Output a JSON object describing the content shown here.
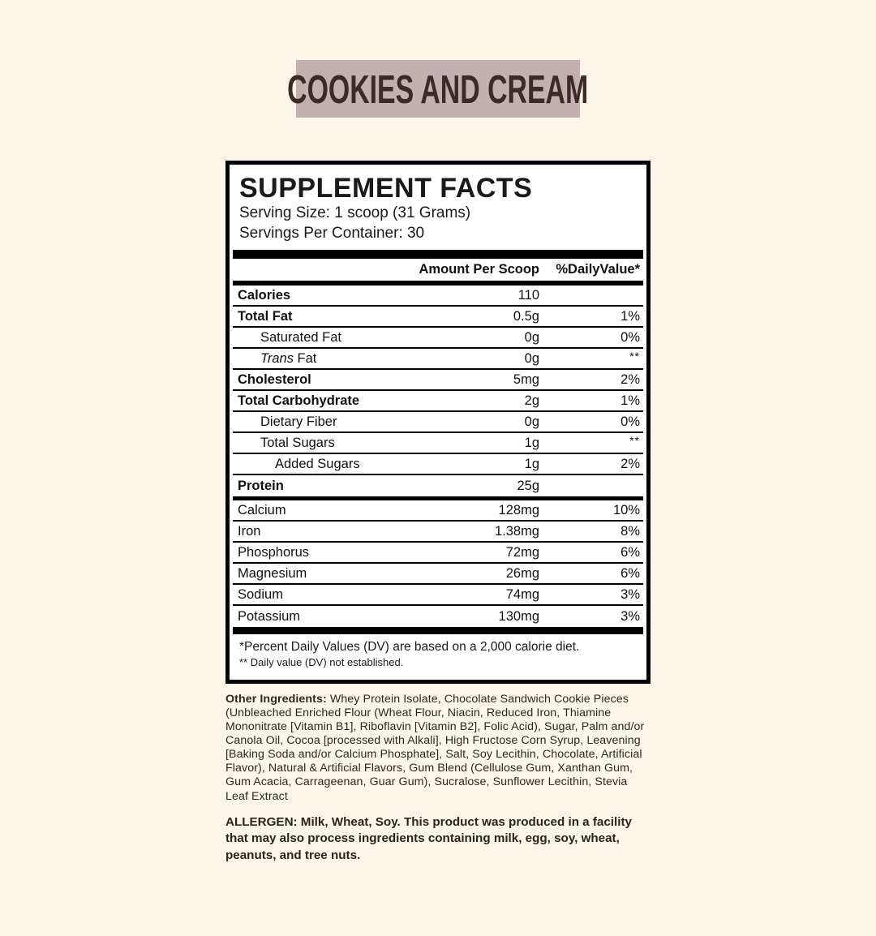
{
  "flavor_badge": {
    "label": "COOKIES AND CREAM",
    "bg_color": "#c3b1b1",
    "text_color": "#3b2a26"
  },
  "supplement_facts": {
    "title": "SUPPLEMENT FACTS",
    "serving_size": "Serving Size: 1 scoop (31 Grams)",
    "servings_per_container": "Servings Per Container: 30",
    "columns": {
      "amount_header": "Amount Per Scoop",
      "daily_value_header": "%DailyValue*"
    },
    "nutrient_rows": [
      {
        "name": "Calories",
        "bold": true,
        "indent": 0,
        "amount": "110",
        "dv": ""
      },
      {
        "name": "Total Fat",
        "bold": true,
        "indent": 0,
        "amount": "0.5g",
        "dv": "1%"
      },
      {
        "name": "Saturated Fat",
        "bold": false,
        "indent": 1,
        "amount": "0g",
        "dv": "0%"
      },
      {
        "name": "Trans Fat",
        "bold": false,
        "indent": 1,
        "amount": "0g",
        "dv": "**",
        "italic_word": "Trans"
      },
      {
        "name": "Cholesterol",
        "bold": true,
        "indent": 0,
        "amount": "5mg",
        "dv": "2%"
      },
      {
        "name": "Total Carbohydrate",
        "bold": true,
        "indent": 0,
        "amount": "2g",
        "dv": "1%"
      },
      {
        "name": "Dietary Fiber",
        "bold": false,
        "indent": 1,
        "amount": "0g",
        "dv": "0%"
      },
      {
        "name": "Total Sugars",
        "bold": false,
        "indent": 1,
        "amount": "1g",
        "dv": "**"
      },
      {
        "name": "Added Sugars",
        "bold": false,
        "indent": 2,
        "amount": "1g",
        "dv": "2%"
      },
      {
        "name": "Protein",
        "bold": true,
        "indent": 0,
        "amount": "25g",
        "dv": ""
      }
    ],
    "mineral_rows": [
      {
        "name": "Calcium",
        "bold": false,
        "indent": 0,
        "amount": "128mg",
        "dv": "10%"
      },
      {
        "name": "Iron",
        "bold": false,
        "indent": 0,
        "amount": "1.38mg",
        "dv": "8%"
      },
      {
        "name": "Phosphorus",
        "bold": false,
        "indent": 0,
        "amount": "72mg",
        "dv": "6%"
      },
      {
        "name": "Magnesium",
        "bold": false,
        "indent": 0,
        "amount": "26mg",
        "dv": "6%"
      },
      {
        "name": "Sodium",
        "bold": false,
        "indent": 0,
        "amount": "74mg",
        "dv": "3%"
      },
      {
        "name": "Potassium",
        "bold": false,
        "indent": 0,
        "amount": "130mg",
        "dv": "3%"
      }
    ],
    "footnotes": {
      "dv_note": "*Percent Daily Values (DV) are based on a 2,000 calorie diet.",
      "not_established_note": "** Daily value (DV) not established."
    }
  },
  "other_ingredients": {
    "label": "Other Ingredients:",
    "text": " Whey Protein Isolate, Chocolate Sandwich Cookie Pieces (Unbleached Enriched Flour (Wheat Flour, Niacin, Reduced Iron, Thiamine Mononitrate [Vitamin B1], Riboflavin [Vitamin B2], Folic Acid), Sugar, Palm and/or Canola Oil, Cocoa [processed with Alkali], High Fructose Corn Syrup, Leavening [Baking Soda and/or Calcium Phosphate], Salt, Soy Lecithin, Chocolate, Artificial Flavor), Natural & Artificial Flavors, Gum Blend (Cellulose Gum, Xanthan Gum, Gum Acacia, Carrageenan, Guar Gum), Sucralose, Sunflower Lecithin, Stevia Leaf Extract"
  },
  "allergen": {
    "text": "ALLERGEN: Milk, Wheat, Soy. This product was produced in a facility that may also process ingredients containing milk, egg, soy, wheat, peanuts, and tree nuts."
  }
}
